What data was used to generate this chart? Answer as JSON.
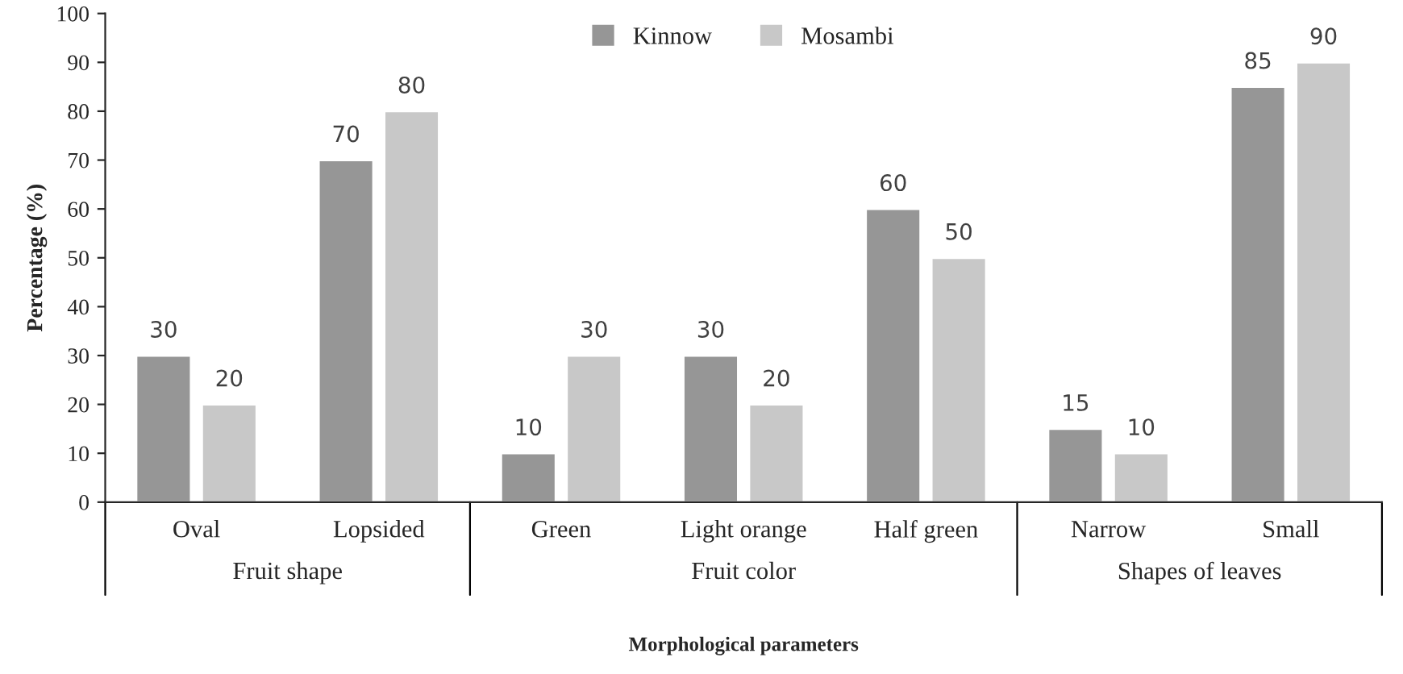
{
  "chart_data": {
    "type": "bar",
    "categories": [
      "Oval",
      "Lopsided",
      "Green",
      "Light orange",
      "Half green",
      "Narrow",
      "Small"
    ],
    "series": [
      {
        "name": "Kinnow",
        "color": "#969696",
        "values": [
          30,
          70,
          10,
          30,
          60,
          15,
          85
        ]
      },
      {
        "name": "Mosambi",
        "color": "#c8c8c8",
        "values": [
          20,
          80,
          30,
          20,
          50,
          10,
          90
        ]
      }
    ],
    "xlabel": "Morphological parameters",
    "ylabel": "Percentage (%)",
    "ylim": [
      0,
      100
    ],
    "yticks": [
      0,
      10,
      20,
      30,
      40,
      50,
      60,
      70,
      80,
      90,
      100
    ],
    "annotations": [
      "Fruit shape",
      "Fruit color",
      "Shapes of leaves"
    ],
    "data_labels": true,
    "legend": "top",
    "grid": false
  }
}
